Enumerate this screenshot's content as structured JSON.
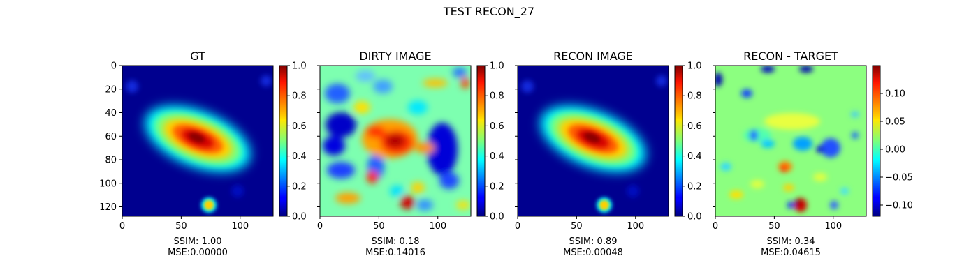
{
  "figure": {
    "suptitle": "TEST RECON_27"
  },
  "chart_data": [
    {
      "type": "heatmap",
      "title": "GT",
      "xticks": [
        0,
        50,
        100
      ],
      "yticks": [
        0,
        20,
        40,
        60,
        80,
        100,
        120
      ],
      "xlim": [
        0,
        128
      ],
      "ylim": [
        128,
        0
      ],
      "colorbar": {
        "ticks": [
          "0.0",
          "0.2",
          "0.4",
          "0.6",
          "0.8",
          "1.0"
        ],
        "range": [
          0,
          1
        ],
        "colormap": "jet"
      },
      "metrics": {
        "ssim": "SSIM: 1.00",
        "mse": "MSE:0.00000"
      }
    },
    {
      "type": "heatmap",
      "title": "DIRTY IMAGE",
      "xticks": [
        0,
        50,
        100
      ],
      "xlim": [
        0,
        128
      ],
      "ylim": [
        128,
        0
      ],
      "colorbar": {
        "ticks": [
          "0.0",
          "0.2",
          "0.4",
          "0.6",
          "0.8",
          "1.0"
        ],
        "range": [
          0,
          1
        ],
        "colormap": "jet"
      },
      "metrics": {
        "ssim": "SSIM: 0.18",
        "mse": "MSE:0.14016"
      }
    },
    {
      "type": "heatmap",
      "title": "RECON IMAGE",
      "xticks": [
        0,
        50,
        100
      ],
      "xlim": [
        0,
        128
      ],
      "ylim": [
        128,
        0
      ],
      "colorbar": {
        "ticks": [
          "0.0",
          "0.2",
          "0.4",
          "0.6",
          "0.8",
          "1.0"
        ],
        "range": [
          0,
          1
        ],
        "colormap": "jet"
      },
      "metrics": {
        "ssim": "SSIM: 0.89",
        "mse": "MSE:0.00048"
      }
    },
    {
      "type": "heatmap",
      "title": "RECON - TARGET",
      "xticks": [
        0,
        50,
        100
      ],
      "xlim": [
        0,
        128
      ],
      "ylim": [
        128,
        0
      ],
      "colorbar": {
        "ticks": [
          "−0.10",
          "−0.05",
          "0.00",
          "0.05",
          "0.10"
        ],
        "range": [
          -0.12,
          0.15
        ],
        "colormap": "jet"
      },
      "metrics": {
        "ssim": "SSIM: 0.34",
        "mse": "MSE:0.04615"
      }
    }
  ]
}
